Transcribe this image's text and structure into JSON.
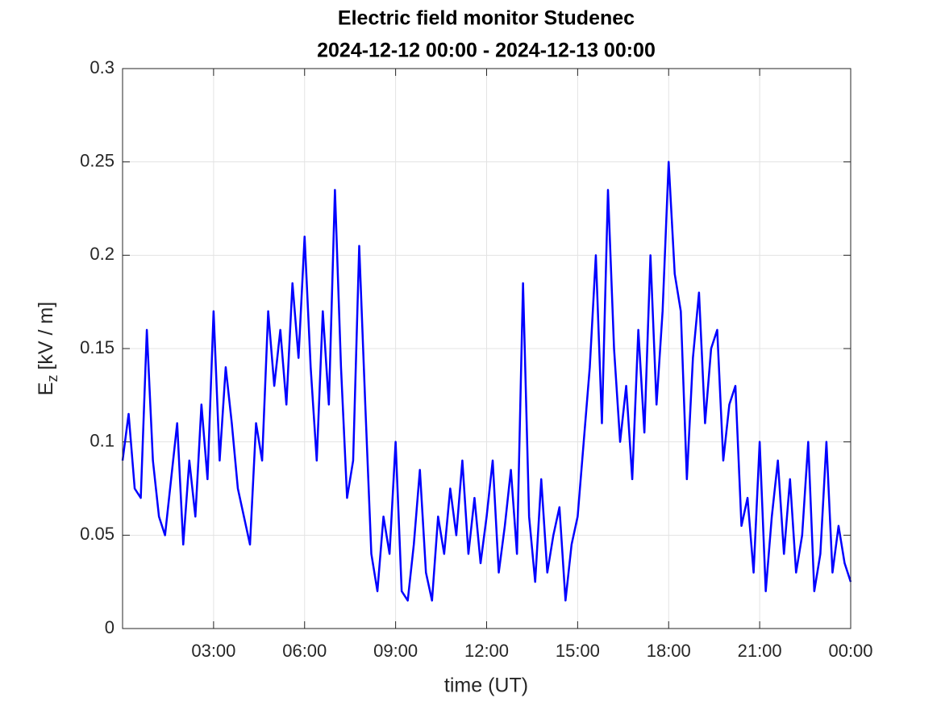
{
  "chart_data": {
    "type": "line",
    "title": "Electric field monitor Studenec",
    "subtitle": "2024-12-12 00:00 - 2024-12-13 00:00",
    "xlabel": "time (UT)",
    "ylabel": "E",
    "ylabel_subscript": "z",
    "ylabel_unit": "[kV / m]",
    "color": "#0000ff",
    "grid": true,
    "xlim": [
      0,
      24
    ],
    "xticks": [
      {
        "value": 3,
        "label": "03:00"
      },
      {
        "value": 6,
        "label": "06:00"
      },
      {
        "value": 9,
        "label": "09:00"
      },
      {
        "value": 12,
        "label": "12:00"
      },
      {
        "value": 15,
        "label": "15:00"
      },
      {
        "value": 18,
        "label": "18:00"
      },
      {
        "value": 21,
        "label": "21:00"
      },
      {
        "value": 24,
        "label": "00:00"
      }
    ],
    "ylim": [
      0,
      0.3
    ],
    "yticks": [
      0,
      0.05,
      0.1,
      0.15,
      0.2,
      0.25,
      0.3
    ],
    "x": [
      0,
      0.2,
      0.4,
      0.6,
      0.8,
      1,
      1.2,
      1.4,
      1.6,
      1.8,
      2,
      2.2,
      2.4,
      2.6,
      2.8,
      3,
      3.2,
      3.4,
      3.6,
      3.8,
      4,
      4.2,
      4.4,
      4.6,
      4.8,
      5,
      5.2,
      5.4,
      5.6,
      5.8,
      6,
      6.2,
      6.4,
      6.6,
      6.8,
      7,
      7.2,
      7.4,
      7.6,
      7.8,
      8,
      8.2,
      8.4,
      8.6,
      8.8,
      9,
      9.2,
      9.4,
      9.6,
      9.8,
      10,
      10.2,
      10.4,
      10.6,
      10.8,
      11,
      11.2,
      11.4,
      11.6,
      11.8,
      12,
      12.2,
      12.4,
      12.6,
      12.8,
      13,
      13.2,
      13.4,
      13.6,
      13.8,
      14,
      14.2,
      14.4,
      14.6,
      14.8,
      15,
      15.2,
      15.4,
      15.6,
      15.8,
      16,
      16.2,
      16.4,
      16.6,
      16.8,
      17,
      17.2,
      17.4,
      17.6,
      17.8,
      18,
      18.2,
      18.4,
      18.6,
      18.8,
      19,
      19.2,
      19.4,
      19.6,
      19.8,
      20,
      20.2,
      20.4,
      20.6,
      20.8,
      21,
      21.2,
      21.4,
      21.6,
      21.8,
      22,
      22.2,
      22.4,
      22.6,
      22.8,
      23,
      23.2,
      23.4,
      23.6,
      23.8,
      24
    ],
    "values": [
      0.09,
      0.115,
      0.075,
      0.07,
      0.16,
      0.09,
      0.06,
      0.05,
      0.08,
      0.11,
      0.045,
      0.09,
      0.06,
      0.12,
      0.08,
      0.17,
      0.09,
      0.14,
      0.11,
      0.075,
      0.06,
      0.045,
      0.11,
      0.09,
      0.17,
      0.13,
      0.16,
      0.12,
      0.185,
      0.145,
      0.21,
      0.14,
      0.09,
      0.17,
      0.12,
      0.235,
      0.14,
      0.07,
      0.09,
      0.205,
      0.12,
      0.04,
      0.02,
      0.06,
      0.04,
      0.1,
      0.02,
      0.015,
      0.045,
      0.085,
      0.03,
      0.015,
      0.06,
      0.04,
      0.075,
      0.05,
      0.09,
      0.04,
      0.07,
      0.035,
      0.06,
      0.09,
      0.03,
      0.055,
      0.085,
      0.04,
      0.185,
      0.06,
      0.025,
      0.08,
      0.03,
      0.05,
      0.065,
      0.015,
      0.045,
      0.06,
      0.1,
      0.14,
      0.2,
      0.11,
      0.235,
      0.15,
      0.1,
      0.13,
      0.08,
      0.16,
      0.105,
      0.2,
      0.12,
      0.17,
      0.25,
      0.19,
      0.17,
      0.08,
      0.145,
      0.18,
      0.11,
      0.15,
      0.16,
      0.09,
      0.12,
      0.13,
      0.055,
      0.07,
      0.03,
      0.1,
      0.02,
      0.06,
      0.09,
      0.04,
      0.08,
      0.03,
      0.05,
      0.1,
      0.02,
      0.04,
      0.1,
      0.03,
      0.055,
      0.035,
      0.025
    ]
  }
}
